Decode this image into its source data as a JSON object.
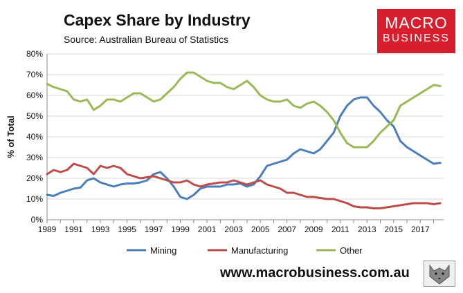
{
  "header": {
    "title": "Capex Share by Industry",
    "subtitle": "Source: Australian Bureau of Statistics"
  },
  "logo": {
    "line1": "MACRO",
    "line2": "BUSINESS"
  },
  "footer": {
    "url": "www.macrobusiness.com.au"
  },
  "colors": {
    "Mining": "#4a7ebb",
    "Manufacturing": "#be4b48",
    "Other": "#98b954"
  },
  "chart_data": {
    "type": "line",
    "ylabel": "% of Total",
    "ylim": [
      0,
      80
    ],
    "yticks": [
      "0%",
      "10%",
      "20%",
      "30%",
      "40%",
      "50%",
      "60%",
      "70%",
      "80%"
    ],
    "xlim": [
      1989,
      2018.75
    ],
    "xticks": [
      "1989",
      "1991",
      "1993",
      "1995",
      "1997",
      "1999",
      "2001",
      "2003",
      "2005",
      "2007",
      "2009",
      "2011",
      "2013",
      "2015",
      "2017"
    ],
    "grid": "horizontal",
    "legend": "bottom",
    "series": [
      {
        "name": "Mining",
        "points": [
          [
            1989,
            12
          ],
          [
            1989.5,
            11.5
          ],
          [
            1990,
            13
          ],
          [
            1990.5,
            14
          ],
          [
            1991,
            15
          ],
          [
            1991.5,
            15.5
          ],
          [
            1992,
            19
          ],
          [
            1992.5,
            20
          ],
          [
            1993,
            18
          ],
          [
            1993.5,
            17
          ],
          [
            1994,
            16
          ],
          [
            1994.5,
            17
          ],
          [
            1995,
            17.5
          ],
          [
            1995.5,
            17.5
          ],
          [
            1996,
            18
          ],
          [
            1996.5,
            19
          ],
          [
            1997,
            22
          ],
          [
            1997.5,
            23
          ],
          [
            1998,
            20
          ],
          [
            1998.5,
            16
          ],
          [
            1999,
            11
          ],
          [
            1999.5,
            10
          ],
          [
            2000,
            12
          ],
          [
            2000.5,
            15
          ],
          [
            2001,
            16
          ],
          [
            2001.5,
            16
          ],
          [
            2002,
            16
          ],
          [
            2002.5,
            17
          ],
          [
            2003,
            17
          ],
          [
            2003.5,
            17.5
          ],
          [
            2004,
            16
          ],
          [
            2004.5,
            17
          ],
          [
            2005,
            21
          ],
          [
            2005.5,
            26
          ],
          [
            2006,
            27
          ],
          [
            2006.5,
            28
          ],
          [
            2007,
            29
          ],
          [
            2007.5,
            32
          ],
          [
            2008,
            34
          ],
          [
            2008.5,
            33
          ],
          [
            2009,
            32
          ],
          [
            2009.5,
            34
          ],
          [
            2010,
            38
          ],
          [
            2010.5,
            42
          ],
          [
            2011,
            50
          ],
          [
            2011.5,
            55
          ],
          [
            2012,
            58
          ],
          [
            2012.5,
            59
          ],
          [
            2013,
            59
          ],
          [
            2013.5,
            55
          ],
          [
            2014,
            52
          ],
          [
            2014.5,
            48
          ],
          [
            2015,
            45
          ],
          [
            2015.5,
            38
          ],
          [
            2016,
            35
          ],
          [
            2016.5,
            33
          ],
          [
            2017,
            31
          ],
          [
            2017.5,
            29
          ],
          [
            2018,
            27
          ],
          [
            2018.5,
            27.5
          ]
        ]
      },
      {
        "name": "Manufacturing",
        "points": [
          [
            1989,
            22
          ],
          [
            1989.5,
            24
          ],
          [
            1990,
            23
          ],
          [
            1990.5,
            24
          ],
          [
            1991,
            27
          ],
          [
            1991.5,
            26
          ],
          [
            1992,
            25
          ],
          [
            1992.5,
            22
          ],
          [
            1993,
            26
          ],
          [
            1993.5,
            25
          ],
          [
            1994,
            26
          ],
          [
            1994.5,
            25
          ],
          [
            1995,
            22
          ],
          [
            1995.5,
            21
          ],
          [
            1996,
            20
          ],
          [
            1996.5,
            20.5
          ],
          [
            1997,
            21
          ],
          [
            1997.5,
            20
          ],
          [
            1998,
            19
          ],
          [
            1998.5,
            18
          ],
          [
            1999,
            18
          ],
          [
            1999.5,
            19
          ],
          [
            2000,
            17
          ],
          [
            2000.5,
            16
          ],
          [
            2001,
            17
          ],
          [
            2001.5,
            17.5
          ],
          [
            2002,
            18
          ],
          [
            2002.5,
            18
          ],
          [
            2003,
            19
          ],
          [
            2003.5,
            18
          ],
          [
            2004,
            17
          ],
          [
            2004.5,
            18
          ],
          [
            2005,
            19
          ],
          [
            2005.5,
            17
          ],
          [
            2006,
            16
          ],
          [
            2006.5,
            15
          ],
          [
            2007,
            13
          ],
          [
            2007.5,
            13
          ],
          [
            2008,
            12
          ],
          [
            2008.5,
            11
          ],
          [
            2009,
            11
          ],
          [
            2009.5,
            10.5
          ],
          [
            2010,
            10
          ],
          [
            2010.5,
            10
          ],
          [
            2011,
            9
          ],
          [
            2011.5,
            8
          ],
          [
            2012,
            6.5
          ],
          [
            2012.5,
            6
          ],
          [
            2013,
            6
          ],
          [
            2013.5,
            5.5
          ],
          [
            2014,
            5.5
          ],
          [
            2014.5,
            6
          ],
          [
            2015,
            6.5
          ],
          [
            2015.5,
            7
          ],
          [
            2016,
            7.5
          ],
          [
            2016.5,
            8
          ],
          [
            2017,
            8
          ],
          [
            2017.5,
            8
          ],
          [
            2018,
            7.5
          ],
          [
            2018.5,
            8
          ]
        ]
      },
      {
        "name": "Other",
        "points": [
          [
            1989,
            65.5
          ],
          [
            1989.5,
            64
          ],
          [
            1990,
            63
          ],
          [
            1990.5,
            62
          ],
          [
            1991,
            58
          ],
          [
            1991.5,
            57
          ],
          [
            1992,
            58
          ],
          [
            1992.5,
            53
          ],
          [
            1993,
            55
          ],
          [
            1993.5,
            58
          ],
          [
            1994,
            58
          ],
          [
            1994.5,
            57
          ],
          [
            1995,
            59
          ],
          [
            1995.5,
            61
          ],
          [
            1996,
            61
          ],
          [
            1996.5,
            59
          ],
          [
            1997,
            57
          ],
          [
            1997.5,
            58
          ],
          [
            1998,
            61
          ],
          [
            1998.5,
            64
          ],
          [
            1999,
            68
          ],
          [
            1999.5,
            71
          ],
          [
            2000,
            71
          ],
          [
            2000.5,
            69
          ],
          [
            2001,
            67
          ],
          [
            2001.5,
            66
          ],
          [
            2002,
            66
          ],
          [
            2002.5,
            64
          ],
          [
            2003,
            63
          ],
          [
            2003.5,
            65
          ],
          [
            2004,
            67
          ],
          [
            2004.5,
            64
          ],
          [
            2005,
            60
          ],
          [
            2005.5,
            58
          ],
          [
            2006,
            57
          ],
          [
            2006.5,
            57
          ],
          [
            2007,
            58
          ],
          [
            2007.5,
            55
          ],
          [
            2008,
            54
          ],
          [
            2008.5,
            56
          ],
          [
            2009,
            57
          ],
          [
            2009.5,
            55
          ],
          [
            2010,
            52
          ],
          [
            2010.5,
            48
          ],
          [
            2011,
            42
          ],
          [
            2011.5,
            37
          ],
          [
            2012,
            35
          ],
          [
            2012.5,
            35
          ],
          [
            2013,
            35
          ],
          [
            2013.5,
            38
          ],
          [
            2014,
            42
          ],
          [
            2014.5,
            45
          ],
          [
            2015,
            48
          ],
          [
            2015.5,
            55
          ],
          [
            2016,
            57
          ],
          [
            2016.5,
            59
          ],
          [
            2017,
            61
          ],
          [
            2017.5,
            63
          ],
          [
            2018,
            65
          ],
          [
            2018.5,
            64.5
          ]
        ]
      }
    ]
  }
}
